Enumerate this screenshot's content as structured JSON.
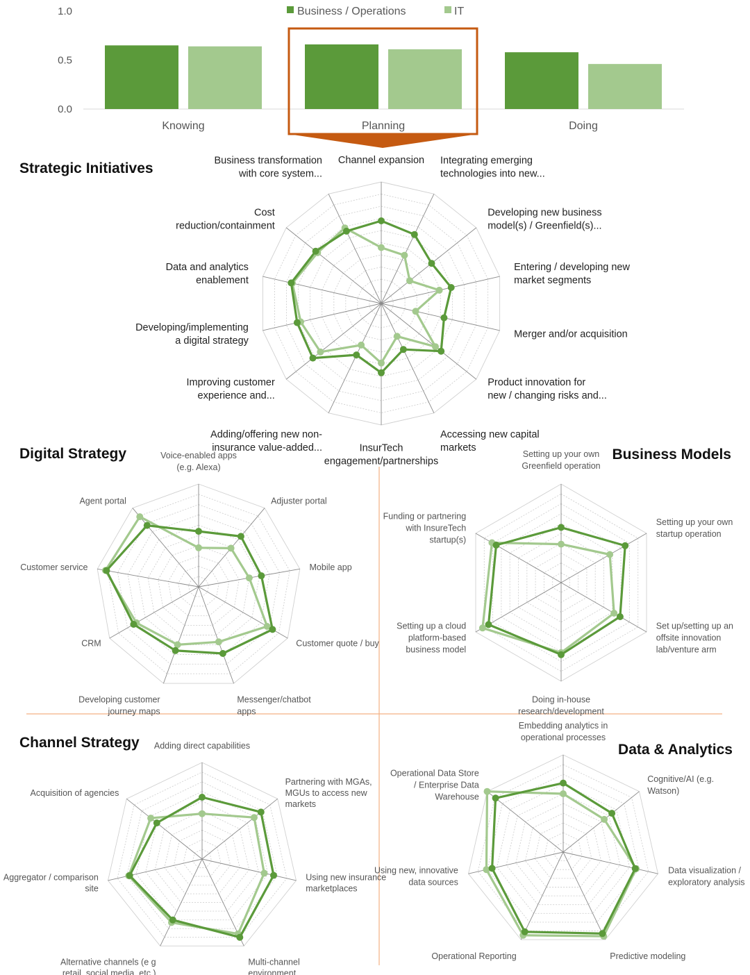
{
  "colors": {
    "business": "#5b9a3a",
    "it": "#a3c98e",
    "highlight_box": "#c55a11",
    "divider": "#f4b183",
    "grid": "#d0d0d0",
    "spoke": "#8a8a8a"
  },
  "chart_data": [
    {
      "id": "bars",
      "type": "bar",
      "categories": [
        "Knowing",
        "Planning",
        "Doing"
      ],
      "series": [
        {
          "name": "Business / Operations",
          "values": [
            0.65,
            0.66,
            0.58
          ]
        },
        {
          "name": "IT",
          "values": [
            0.64,
            0.61,
            0.46
          ]
        }
      ],
      "yticks": [
        "1.0",
        "0.5",
        "0.0"
      ],
      "ylim": [
        0,
        1
      ],
      "legend": "top-center",
      "highlighted_category": "Planning"
    },
    {
      "id": "strategic",
      "type": "radar",
      "title": "Strategic Initiatives",
      "axes": [
        {
          "label": [
            "Channel expansion"
          ]
        },
        {
          "label": [
            "Integrating emerging",
            "technologies into new..."
          ]
        },
        {
          "label": [
            "Developing new business",
            "model(s) / Greenfield(s)..."
          ]
        },
        {
          "label": [
            "Entering / developing new",
            "market segments"
          ]
        },
        {
          "label": [
            "Merger and/or acquisition"
          ]
        },
        {
          "label": [
            "Product innovation for",
            "new / changing risks and..."
          ]
        },
        {
          "label": [
            "Accessing new capital",
            "markets"
          ]
        },
        {
          "label": [
            "InsurTech",
            "engagement/partnerships"
          ]
        },
        {
          "label": [
            "Adding/offering new non-",
            "insurance value-added..."
          ]
        },
        {
          "label": [
            "Improving customer",
            "experience and..."
          ]
        },
        {
          "label": [
            "Developing/implementing",
            "a digital strategy"
          ]
        },
        {
          "label": [
            "Data and analytics",
            "enablement"
          ]
        },
        {
          "label": [
            "Cost",
            "reduction/containment"
          ]
        },
        {
          "label": [
            "Business transformation",
            "with core system..."
          ]
        }
      ],
      "series": [
        {
          "name": "Business / Operations",
          "values": [
            0.68,
            0.63,
            0.53,
            0.59,
            0.53,
            0.63,
            0.42,
            0.57,
            0.47,
            0.72,
            0.71,
            0.76,
            0.69,
            0.66
          ]
        },
        {
          "name": "IT",
          "values": [
            0.46,
            0.44,
            0.3,
            0.49,
            0.29,
            0.57,
            0.3,
            0.49,
            0.38,
            0.64,
            0.68,
            0.75,
            0.67,
            0.69
          ]
        }
      ]
    },
    {
      "id": "digital",
      "type": "radar",
      "title": "Digital Strategy",
      "axes": [
        {
          "label": [
            "Voice-enabled apps",
            "(e.g. Alexa)"
          ]
        },
        {
          "label": [
            "Adjuster portal"
          ]
        },
        {
          "label": [
            "Mobile app"
          ]
        },
        {
          "label": [
            "Customer quote / buy"
          ]
        },
        {
          "label": [
            "Messenger/chatbot",
            "apps"
          ]
        },
        {
          "label": [
            "Developing customer",
            "journey maps"
          ]
        },
        {
          "label": [
            "CRM"
          ]
        },
        {
          "label": [
            "Customer service"
          ]
        },
        {
          "label": [
            "Agent portal"
          ]
        }
      ],
      "series": [
        {
          "name": "Business / Operations",
          "values": [
            0.54,
            0.64,
            0.62,
            0.83,
            0.69,
            0.66,
            0.73,
            0.91,
            0.78
          ]
        },
        {
          "name": "IT",
          "values": [
            0.38,
            0.49,
            0.5,
            0.77,
            0.57,
            0.6,
            0.7,
            0.92,
            0.89
          ]
        }
      ]
    },
    {
      "id": "business_models",
      "type": "radar",
      "title": "Business Models",
      "axes": [
        {
          "label": [
            "Setting up your own",
            "Greenfield operation"
          ]
        },
        {
          "label": [
            "Setting up your own",
            "startup operation"
          ]
        },
        {
          "label": [
            "Set up/setting up an",
            "offsite innovation",
            "lab/venture arm"
          ]
        },
        {
          "label": [
            "Doing in-house",
            "research/development"
          ]
        },
        {
          "label": [
            "Setting up a cloud",
            "platform-based",
            "business model"
          ]
        },
        {
          "label": [
            "Funding or partnering",
            "with InsureTech",
            "startup(s)"
          ]
        }
      ],
      "series": [
        {
          "name": "Business / Operations",
          "values": [
            0.56,
            0.75,
            0.69,
            0.73,
            0.85,
            0.76
          ]
        },
        {
          "name": "IT",
          "values": [
            0.39,
            0.57,
            0.62,
            0.71,
            0.92,
            0.81
          ]
        }
      ]
    },
    {
      "id": "channel",
      "type": "radar",
      "title": "Channel Strategy",
      "axes": [
        {
          "label": [
            "Adding direct capabilities"
          ]
        },
        {
          "label": [
            "Partnering with MGAs,",
            "MGUs to access new",
            "markets"
          ]
        },
        {
          "label": [
            "Using new insurance",
            "marketplaces"
          ]
        },
        {
          "label": [
            "Multi-channel",
            "environment"
          ]
        },
        {
          "label": [
            "Alternative channels (e g",
            "retail, social media, etc )"
          ]
        },
        {
          "label": [
            "Aggregator / comparison",
            "site"
          ]
        },
        {
          "label": [
            "Acquisition of agencies"
          ]
        }
      ],
      "series": [
        {
          "name": "Business / Operations",
          "values": [
            0.64,
            0.78,
            0.76,
            0.9,
            0.7,
            0.77,
            0.6
          ]
        },
        {
          "name": "IT",
          "values": [
            0.47,
            0.69,
            0.66,
            0.86,
            0.73,
            0.78,
            0.68
          ]
        }
      ]
    },
    {
      "id": "data_analytics",
      "type": "radar",
      "title": "Data & Analytics",
      "axes": [
        {
          "label": [
            "Embedding analytics in",
            "operational processes"
          ]
        },
        {
          "label": [
            "Cognitive/AI (e.g.",
            "Watson)"
          ]
        },
        {
          "label": [
            "Data visualization /",
            "exploratory analysis"
          ]
        },
        {
          "label": [
            "Predictive modeling"
          ]
        },
        {
          "label": [
            "Operational Reporting"
          ]
        },
        {
          "label": [
            "Using new, innovative",
            "data sources"
          ]
        },
        {
          "label": [
            "Operational Data Store",
            "/ Enterprise Data",
            "Warehouse"
          ]
        }
      ],
      "series": [
        {
          "name": "Business / Operations",
          "values": [
            0.71,
            0.64,
            0.76,
            0.93,
            0.91,
            0.75,
            0.89
          ]
        },
        {
          "name": "IT",
          "values": [
            0.6,
            0.54,
            0.77,
            0.96,
            0.95,
            0.81,
            1.0
          ]
        }
      ]
    }
  ]
}
